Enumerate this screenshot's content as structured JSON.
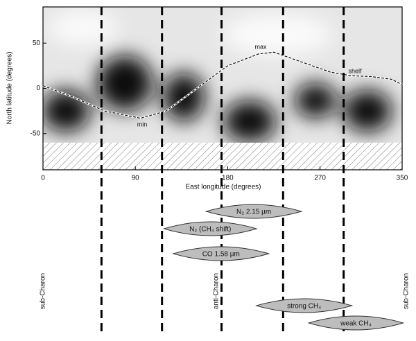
{
  "chart_data": {
    "type": "map",
    "xlabel": "East longitude (degrees)",
    "ylabel": "North latitude (degrees)",
    "xlim": [
      0,
      350
    ],
    "xticks": [
      0,
      90,
      180,
      270,
      350
    ],
    "ylim": [
      -90,
      90
    ],
    "yticks": [
      -50,
      0,
      50
    ],
    "hatch_below": -60,
    "vlines": [
      57,
      116,
      174,
      234,
      293
    ],
    "curve": {
      "x": [
        0,
        30,
        60,
        95,
        120,
        150,
        180,
        210,
        225,
        250,
        280,
        300,
        320,
        340,
        350
      ],
      "y": [
        3,
        -10,
        -25,
        -33,
        -25,
        0,
        25,
        38,
        40,
        30,
        18,
        14,
        13,
        10,
        4
      ]
    },
    "annotations": [
      "max",
      "min",
      "shelf"
    ],
    "features": [
      {
        "name": "N₂ 2.15 µm",
        "range": [
          159,
          252
        ]
      },
      {
        "name": "N₂ (CH₄ shift)",
        "range": [
          118,
          208
        ]
      },
      {
        "name": "CO 1.58 µm",
        "range": [
          127,
          220
        ]
      },
      {
        "name": "strong CH₄",
        "range": [
          208,
          301
        ]
      },
      {
        "name": "weak CH₄",
        "range": [
          259,
          351
        ]
      }
    ],
    "markers": [
      "sub-Charon",
      "anti-Charon",
      "sub-Charon"
    ]
  }
}
